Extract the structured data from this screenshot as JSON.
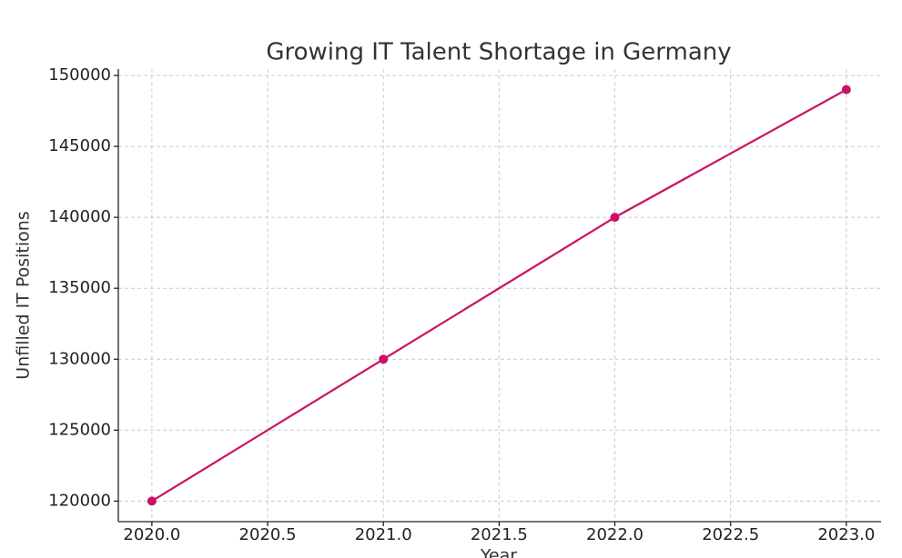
{
  "chart_data": {
    "type": "line",
    "title": "Growing IT Talent Shortage in Germany",
    "xlabel": "Year",
    "ylabel": "Unfilled IT Positions",
    "x": [
      2020,
      2021,
      2022,
      2023
    ],
    "series": [
      {
        "name": "Unfilled IT Positions",
        "color": "#cc1166",
        "values": [
          120000,
          130000,
          140000,
          149000
        ]
      }
    ],
    "xlim": [
      2019.855,
      2023.15
    ],
    "xticks": [
      {
        "value": 2020,
        "label": "2020.0"
      },
      {
        "value": 2020.5,
        "label": "2020.5"
      },
      {
        "value": 2021,
        "label": "2021.0"
      },
      {
        "value": 2021.5,
        "label": "2021.5"
      },
      {
        "value": 2022,
        "label": "2022.0"
      },
      {
        "value": 2022.5,
        "label": "2022.5"
      },
      {
        "value": 2023,
        "label": "2023.0"
      }
    ],
    "ylim": [
      118550,
      150450
    ],
    "yticks": [
      120000,
      125000,
      130000,
      135000,
      140000,
      145000,
      150000
    ],
    "grid": true,
    "marker": "circle"
  }
}
